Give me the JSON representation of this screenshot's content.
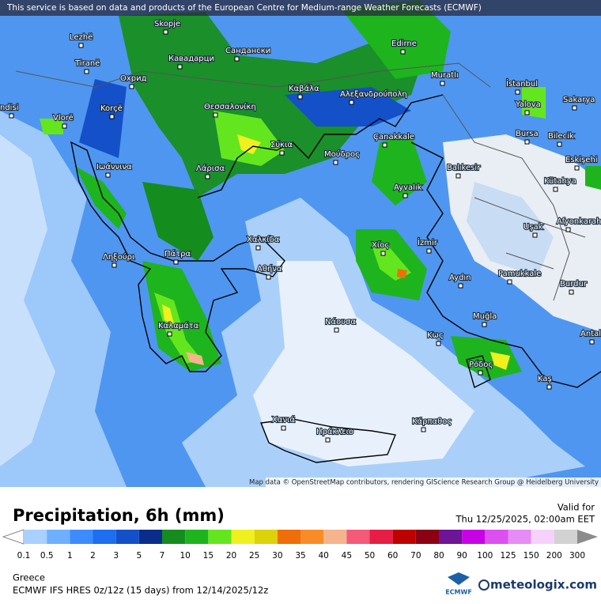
{
  "notice": "This service is based on data and products of the European Centre for Medium-range Weather Forecasts (ECMWF)",
  "attribution": "Map data © OpenStreetMap contributors, rendering GIScience Research Group @ Heidelberg University",
  "cities": [
    "Skopje",
    "Lezhë",
    "Tiranë",
    "Кавадарци",
    "Сандански",
    "Edirne",
    "Охрид",
    "Muratlı",
    "İstanbul",
    "Vlorë",
    "Korçë",
    "Καβάλα",
    "Θεσσαλονίκη",
    "Αλεξανδρούπολη",
    "Yalova",
    "Sakarya",
    "ndisi",
    "Çanakkale",
    "Bursa",
    "Bilecik",
    "Σύκια",
    "Μούδρος",
    "Ιωάννινα",
    "Λάρισα",
    "Balıkesir",
    "Eskişehi",
    "Ayvalık",
    "Kütahya",
    "Χαλκίδα",
    "Χίος",
    "İzmir",
    "Uşak",
    "Afyonkarah",
    "Ληξούρι",
    "Πάτρα",
    "Αθήνα",
    "Aydın",
    "Pamukkale",
    "Burdur",
    "Καλαμάτα",
    "Νάουσα",
    "Muğla",
    "Κως",
    "Antal",
    "Ρόδος",
    "Kaş",
    "Χανιά",
    "Ηράκλειο",
    "Κάρπαθος"
  ],
  "legend": {
    "title": "Precipitation, 6h (mm)",
    "valid_label": "Valid for",
    "valid_time": "Thu 12/25/2025, 02:00am EET",
    "levels": [
      "0.1",
      "0.5",
      "1",
      "2",
      "3",
      "5",
      "7",
      "10",
      "15",
      "20",
      "25",
      "30",
      "35",
      "40",
      "45",
      "50",
      "60",
      "70",
      "80",
      "90",
      "100",
      "125",
      "150",
      "200",
      "300"
    ],
    "colors": [
      "#a9d0ff",
      "#6eb0ff",
      "#3c8cff",
      "#1e6ef0",
      "#1450c8",
      "#0a2d8c",
      "#148c1e",
      "#1eb41e",
      "#64e61e",
      "#f0f01e",
      "#dcd20a",
      "#f06e0a",
      "#fa8c28",
      "#f5b48c",
      "#f55a78",
      "#e61e46",
      "#be0000",
      "#8c0014",
      "#6e1496",
      "#c800e6",
      "#dc50f0",
      "#e68cf5",
      "#f5d2fa",
      "#d2d2d2"
    ]
  },
  "footer": {
    "region": "Greece",
    "model": "ECMWF IFS HRES 0z/12z (15 days) from 12/14/2025/12z"
  },
  "brand": {
    "ecmwf": "ECMWF",
    "site": "meteologix.com"
  }
}
